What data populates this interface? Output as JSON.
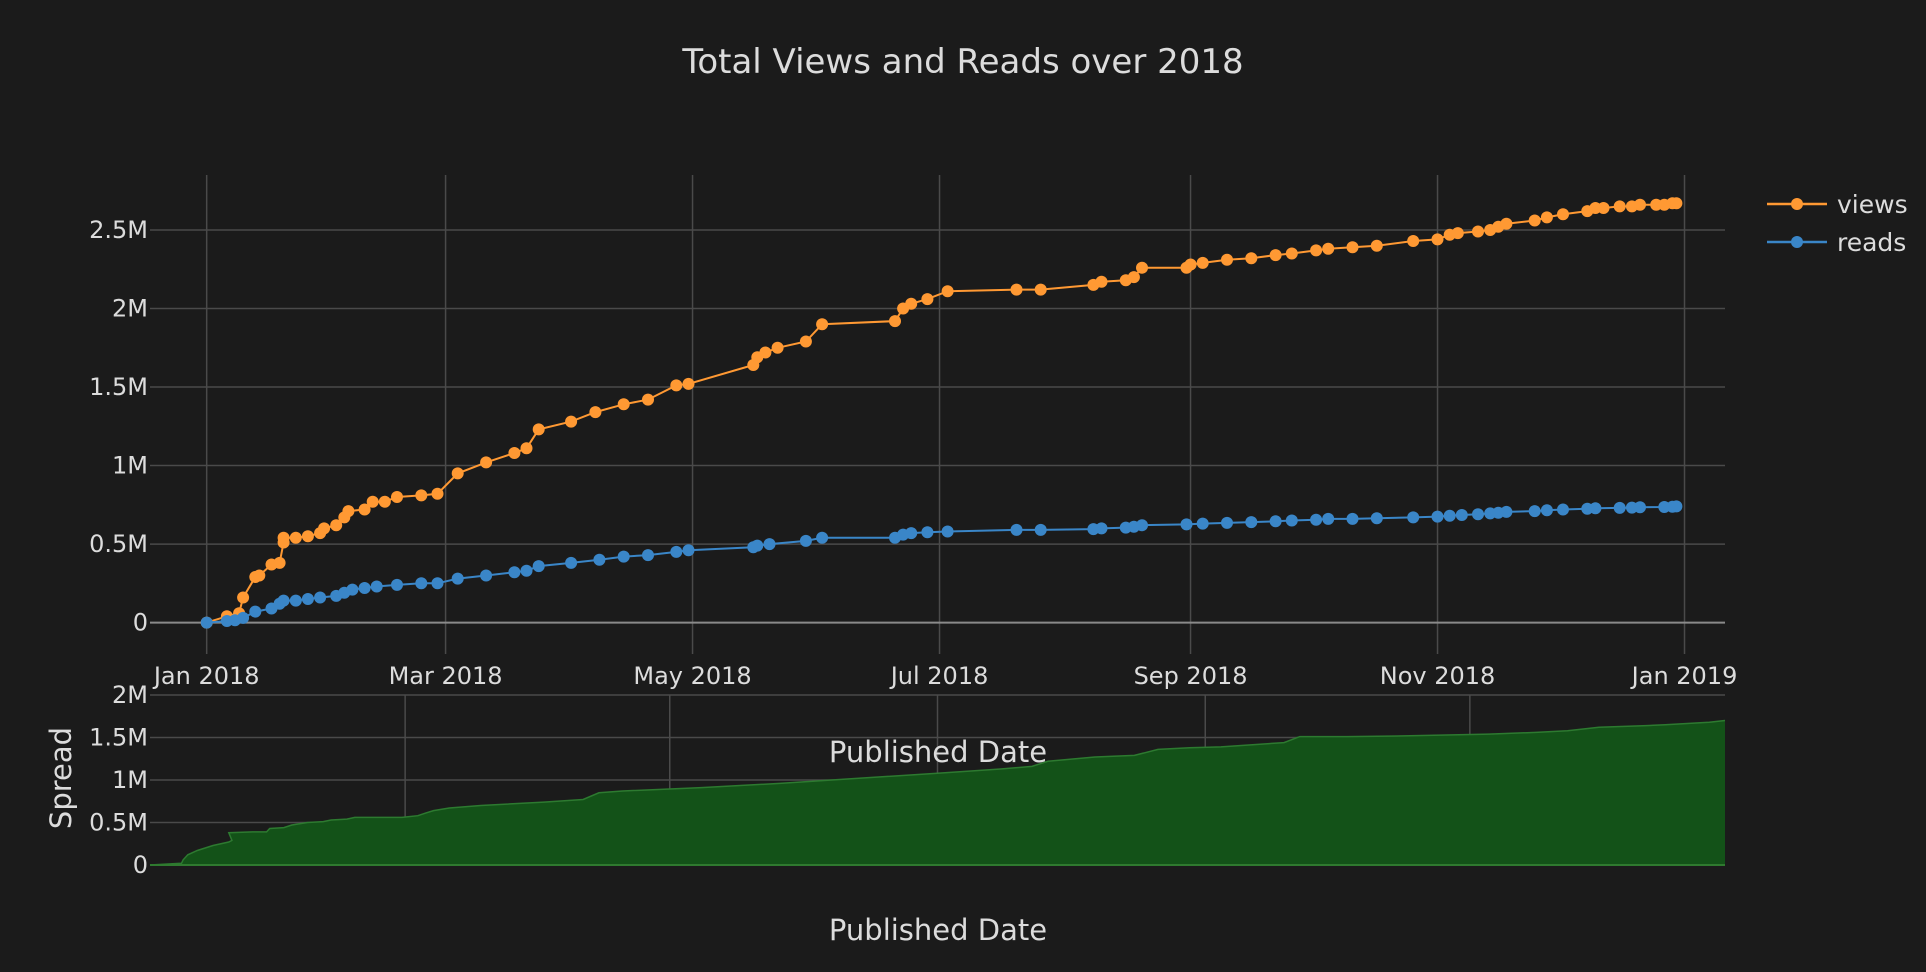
{
  "chart_data": [
    {
      "type": "line",
      "title": "Total Views and Reads over 2018",
      "xlabel": "Published Date",
      "ylabel": "",
      "x_axis_type": "date",
      "xlim": [
        "2017-12-18",
        "2019-01-11"
      ],
      "ylim": [
        -200000,
        2850000
      ],
      "x_tick_labels": [
        {
          "date": "2018-01-01",
          "label": "Jan 2018"
        },
        {
          "date": "2018-03-01",
          "label": "Mar 2018"
        },
        {
          "date": "2018-05-01",
          "label": "May 2018"
        },
        {
          "date": "2018-07-01",
          "label": "Jul 2018"
        },
        {
          "date": "2018-09-01",
          "label": "Sep 2018"
        },
        {
          "date": "2018-11-01",
          "label": "Nov 2018"
        },
        {
          "date": "2019-01-01",
          "label": "Jan 2019"
        }
      ],
      "y_tick_labels": [
        {
          "value": 0,
          "label": "0"
        },
        {
          "value": 500000,
          "label": "0.5M"
        },
        {
          "value": 1000000,
          "label": "1M"
        },
        {
          "value": 1500000,
          "label": "1.5M"
        },
        {
          "value": 2000000,
          "label": "2M"
        },
        {
          "value": 2500000,
          "label": "2.5M"
        }
      ],
      "grid": true,
      "legend_position": "top-right",
      "series": [
        {
          "name": "views",
          "color": "#ff9933",
          "marker": "circle",
          "points": [
            [
              "2018-01-01",
              0
            ],
            [
              "2018-01-06",
              40000
            ],
            [
              "2018-01-09",
              60000
            ],
            [
              "2018-01-10",
              160000
            ],
            [
              "2018-01-13",
              290000
            ],
            [
              "2018-01-14",
              300000
            ],
            [
              "2018-01-17",
              370000
            ],
            [
              "2018-01-19",
              380000
            ],
            [
              "2018-01-20",
              510000
            ],
            [
              "2018-01-20",
              540000
            ],
            [
              "2018-01-23",
              540000
            ],
            [
              "2018-01-26",
              550000
            ],
            [
              "2018-01-29",
              570000
            ],
            [
              "2018-01-30",
              600000
            ],
            [
              "2018-02-02",
              620000
            ],
            [
              "2018-02-04",
              670000
            ],
            [
              "2018-02-05",
              710000
            ],
            [
              "2018-02-09",
              720000
            ],
            [
              "2018-02-11",
              770000
            ],
            [
              "2018-02-14",
              770000
            ],
            [
              "2018-02-17",
              800000
            ],
            [
              "2018-02-23",
              810000
            ],
            [
              "2018-02-27",
              820000
            ],
            [
              "2018-03-04",
              950000
            ],
            [
              "2018-03-11",
              1020000
            ],
            [
              "2018-03-18",
              1080000
            ],
            [
              "2018-03-21",
              1110000
            ],
            [
              "2018-03-24",
              1230000
            ],
            [
              "2018-04-01",
              1280000
            ],
            [
              "2018-04-07",
              1340000
            ],
            [
              "2018-04-14",
              1390000
            ],
            [
              "2018-04-20",
              1420000
            ],
            [
              "2018-04-27",
              1510000
            ],
            [
              "2018-04-30",
              1520000
            ],
            [
              "2018-05-16",
              1640000
            ],
            [
              "2018-05-17",
              1690000
            ],
            [
              "2018-05-19",
              1720000
            ],
            [
              "2018-05-22",
              1750000
            ],
            [
              "2018-05-29",
              1790000
            ],
            [
              "2018-06-02",
              1900000
            ],
            [
              "2018-06-20",
              1920000
            ],
            [
              "2018-06-22",
              2000000
            ],
            [
              "2018-06-24",
              2030000
            ],
            [
              "2018-06-28",
              2060000
            ],
            [
              "2018-07-03",
              2110000
            ],
            [
              "2018-07-20",
              2120000
            ],
            [
              "2018-07-26",
              2120000
            ],
            [
              "2018-08-08",
              2150000
            ],
            [
              "2018-08-10",
              2170000
            ],
            [
              "2018-08-16",
              2180000
            ],
            [
              "2018-08-18",
              2200000
            ],
            [
              "2018-08-20",
              2260000
            ],
            [
              "2018-08-31",
              2260000
            ],
            [
              "2018-09-01",
              2280000
            ],
            [
              "2018-09-04",
              2290000
            ],
            [
              "2018-09-10",
              2310000
            ],
            [
              "2018-09-16",
              2320000
            ],
            [
              "2018-09-22",
              2340000
            ],
            [
              "2018-09-26",
              2350000
            ],
            [
              "2018-10-02",
              2370000
            ],
            [
              "2018-10-05",
              2380000
            ],
            [
              "2018-10-11",
              2390000
            ],
            [
              "2018-10-17",
              2400000
            ],
            [
              "2018-10-26",
              2430000
            ],
            [
              "2018-11-01",
              2440000
            ],
            [
              "2018-11-04",
              2470000
            ],
            [
              "2018-11-06",
              2480000
            ],
            [
              "2018-11-11",
              2490000
            ],
            [
              "2018-11-14",
              2500000
            ],
            [
              "2018-11-16",
              2520000
            ],
            [
              "2018-11-18",
              2540000
            ],
            [
              "2018-11-25",
              2560000
            ],
            [
              "2018-11-28",
              2580000
            ],
            [
              "2018-12-02",
              2600000
            ],
            [
              "2018-12-08",
              2620000
            ],
            [
              "2018-12-10",
              2640000
            ],
            [
              "2018-12-12",
              2640000
            ],
            [
              "2018-12-16",
              2650000
            ],
            [
              "2018-12-19",
              2650000
            ],
            [
              "2018-12-21",
              2660000
            ],
            [
              "2018-12-25",
              2660000
            ],
            [
              "2018-12-27",
              2660000
            ],
            [
              "2018-12-29",
              2670000
            ],
            [
              "2018-12-30",
              2670000
            ]
          ]
        },
        {
          "name": "reads",
          "color": "#3a86c8",
          "marker": "circle",
          "points": [
            [
              "2018-01-01",
              0
            ],
            [
              "2018-01-06",
              10000
            ],
            [
              "2018-01-08",
              15000
            ],
            [
              "2018-01-10",
              30000
            ],
            [
              "2018-01-13",
              70000
            ],
            [
              "2018-01-17",
              90000
            ],
            [
              "2018-01-19",
              120000
            ],
            [
              "2018-01-20",
              140000
            ],
            [
              "2018-01-23",
              140000
            ],
            [
              "2018-01-26",
              150000
            ],
            [
              "2018-01-29",
              160000
            ],
            [
              "2018-02-02",
              170000
            ],
            [
              "2018-02-04",
              190000
            ],
            [
              "2018-02-06",
              210000
            ],
            [
              "2018-02-09",
              220000
            ],
            [
              "2018-02-12",
              230000
            ],
            [
              "2018-02-17",
              240000
            ],
            [
              "2018-02-23",
              250000
            ],
            [
              "2018-02-27",
              250000
            ],
            [
              "2018-03-04",
              280000
            ],
            [
              "2018-03-11",
              300000
            ],
            [
              "2018-03-18",
              320000
            ],
            [
              "2018-03-21",
              330000
            ],
            [
              "2018-03-24",
              360000
            ],
            [
              "2018-04-01",
              380000
            ],
            [
              "2018-04-08",
              400000
            ],
            [
              "2018-04-14",
              420000
            ],
            [
              "2018-04-20",
              430000
            ],
            [
              "2018-04-27",
              450000
            ],
            [
              "2018-04-30",
              460000
            ],
            [
              "2018-05-16",
              480000
            ],
            [
              "2018-05-17",
              490000
            ],
            [
              "2018-05-20",
              500000
            ],
            [
              "2018-05-29",
              520000
            ],
            [
              "2018-06-02",
              540000
            ],
            [
              "2018-06-20",
              540000
            ],
            [
              "2018-06-22",
              560000
            ],
            [
              "2018-06-24",
              570000
            ],
            [
              "2018-06-28",
              575000
            ],
            [
              "2018-07-03",
              580000
            ],
            [
              "2018-07-20",
              590000
            ],
            [
              "2018-07-26",
              590000
            ],
            [
              "2018-08-08",
              595000
            ],
            [
              "2018-08-10",
              600000
            ],
            [
              "2018-08-16",
              605000
            ],
            [
              "2018-08-18",
              610000
            ],
            [
              "2018-08-20",
              620000
            ],
            [
              "2018-08-31",
              625000
            ],
            [
              "2018-09-04",
              630000
            ],
            [
              "2018-09-10",
              635000
            ],
            [
              "2018-09-16",
              640000
            ],
            [
              "2018-09-22",
              645000
            ],
            [
              "2018-09-26",
              650000
            ],
            [
              "2018-10-02",
              655000
            ],
            [
              "2018-10-05",
              660000
            ],
            [
              "2018-10-11",
              660000
            ],
            [
              "2018-10-17",
              665000
            ],
            [
              "2018-10-26",
              670000
            ],
            [
              "2018-11-01",
              675000
            ],
            [
              "2018-11-04",
              680000
            ],
            [
              "2018-11-07",
              685000
            ],
            [
              "2018-11-11",
              690000
            ],
            [
              "2018-11-14",
              695000
            ],
            [
              "2018-11-16",
              700000
            ],
            [
              "2018-11-18",
              705000
            ],
            [
              "2018-11-25",
              710000
            ],
            [
              "2018-11-28",
              715000
            ],
            [
              "2018-12-02",
              720000
            ],
            [
              "2018-12-08",
              725000
            ],
            [
              "2018-12-10",
              728000
            ],
            [
              "2018-12-16",
              730000
            ],
            [
              "2018-12-19",
              732000
            ],
            [
              "2018-12-21",
              734000
            ],
            [
              "2018-12-27",
              736000
            ],
            [
              "2018-12-29",
              738000
            ],
            [
              "2018-12-30",
              740000
            ]
          ]
        }
      ]
    },
    {
      "type": "area",
      "title": "",
      "xlabel": "Published Date",
      "ylabel": "Spread",
      "ylim": [
        0,
        2000000
      ],
      "y_tick_labels": [
        {
          "value": 0,
          "label": "0"
        },
        {
          "value": 500000,
          "label": "0.5M"
        },
        {
          "value": 1000000,
          "label": "1M"
        },
        {
          "value": 1500000,
          "label": "1.5M"
        },
        {
          "value": 2000000,
          "label": "2M"
        }
      ],
      "grid": true,
      "series": [
        {
          "fill_color": "#135218",
          "line_color": "#2d7a30",
          "values": [
            [
              0.0,
              0
            ],
            [
              0.02,
              20000
            ],
            [
              0.021,
              60000
            ],
            [
              0.024,
              120000
            ],
            [
              0.03,
              170000
            ],
            [
              0.04,
              230000
            ],
            [
              0.05,
              270000
            ],
            [
              0.052,
              290000
            ],
            [
              0.05,
              380000
            ],
            [
              0.065,
              390000
            ],
            [
              0.074,
              390000
            ],
            [
              0.076,
              430000
            ],
            [
              0.085,
              440000
            ],
            [
              0.09,
              470000
            ],
            [
              0.1,
              500000
            ],
            [
              0.11,
              510000
            ],
            [
              0.115,
              530000
            ],
            [
              0.125,
              540000
            ],
            [
              0.13,
              560000
            ],
            [
              0.16,
              560000
            ],
            [
              0.17,
              580000
            ],
            [
              0.175,
              610000
            ],
            [
              0.18,
              640000
            ],
            [
              0.19,
              670000
            ],
            [
              0.21,
              700000
            ],
            [
              0.25,
              740000
            ],
            [
              0.275,
              770000
            ],
            [
              0.285,
              850000
            ],
            [
              0.3,
              870000
            ],
            [
              0.35,
              910000
            ],
            [
              0.4,
              960000
            ],
            [
              0.45,
              1020000
            ],
            [
              0.5,
              1080000
            ],
            [
              0.54,
              1130000
            ],
            [
              0.56,
              1160000
            ],
            [
              0.57,
              1220000
            ],
            [
              0.6,
              1270000
            ],
            [
              0.625,
              1290000
            ],
            [
              0.64,
              1360000
            ],
            [
              0.66,
              1380000
            ],
            [
              0.68,
              1390000
            ],
            [
              0.72,
              1440000
            ],
            [
              0.73,
              1510000
            ],
            [
              0.76,
              1510000
            ],
            [
              0.8,
              1520000
            ],
            [
              0.85,
              1540000
            ],
            [
              0.88,
              1560000
            ],
            [
              0.9,
              1580000
            ],
            [
              0.92,
              1620000
            ],
            [
              0.95,
              1640000
            ],
            [
              0.962,
              1650000
            ],
            [
              0.99,
              1680000
            ],
            [
              1.0,
              1700000
            ]
          ]
        }
      ]
    }
  ],
  "ui_labels": {
    "overlay_xlabel": "Published Date"
  }
}
